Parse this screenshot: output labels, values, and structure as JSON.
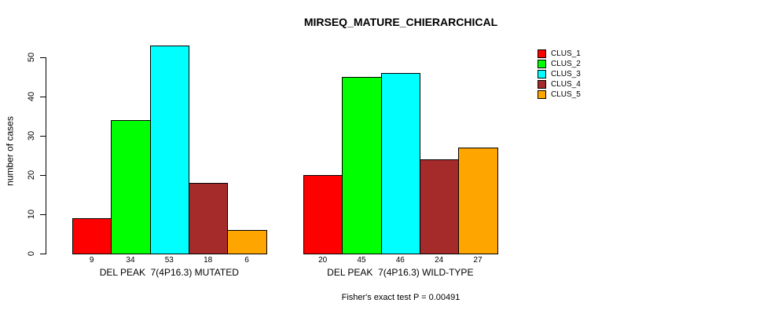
{
  "chart_data": {
    "type": "bar",
    "title": "MIRSEQ_MATURE_CHIERARCHICAL",
    "ylabel": "number of cases",
    "xlabel": "",
    "ylim": [
      0,
      55
    ],
    "yticks": [
      0,
      10,
      20,
      30,
      40,
      50
    ],
    "grid": false,
    "legend_position": "right",
    "categories": [
      "DEL PEAK  7(4P16.3) MUTATED",
      "DEL PEAK  7(4P16.3) WILD-TYPE"
    ],
    "series": [
      {
        "name": "CLUS_1",
        "color": "#FF0000",
        "values": [
          9,
          20
        ]
      },
      {
        "name": "CLUS_2",
        "color": "#00FF00",
        "values": [
          34,
          45
        ]
      },
      {
        "name": "CLUS_3",
        "color": "#00FFFF",
        "values": [
          53,
          46
        ]
      },
      {
        "name": "CLUS_4",
        "color": "#A52A2A",
        "values": [
          18,
          24
        ]
      },
      {
        "name": "CLUS_5",
        "color": "#FFA500",
        "values": [
          6,
          27
        ]
      }
    ],
    "bar_value_labels": true,
    "annotation": "Fisher's exact test P = 0.00491"
  }
}
